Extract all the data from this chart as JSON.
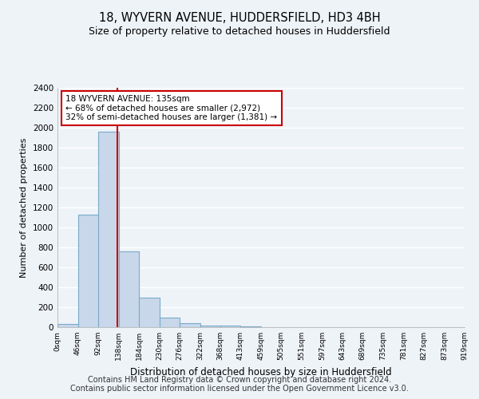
{
  "title": "18, WYVERN AVENUE, HUDDERSFIELD, HD3 4BH",
  "subtitle": "Size of property relative to detached houses in Huddersfield",
  "xlabel": "Distribution of detached houses by size in Huddersfield",
  "ylabel": "Number of detached properties",
  "bin_edges": [
    0,
    46,
    92,
    138,
    184,
    230,
    276,
    322,
    368,
    413,
    459,
    505,
    551,
    597,
    643,
    689,
    735,
    781,
    827,
    873,
    919
  ],
  "bin_counts": [
    35,
    1130,
    1960,
    760,
    295,
    100,
    42,
    20,
    15,
    5,
    0,
    0,
    0,
    0,
    0,
    0,
    0,
    0,
    0,
    0
  ],
  "bar_color": "#c8d8ea",
  "bar_edgecolor": "#7aaac8",
  "vline_x": 135,
  "vline_color": "#cc0000",
  "annotation_text_line1": "18 WYVERN AVENUE: 135sqm",
  "annotation_text_line2": "← 68% of detached houses are smaller (2,972)",
  "annotation_text_line3": "32% of semi-detached houses are larger (1,381) →",
  "annotation_box_color": "#ffffff",
  "annotation_border_color": "#cc0000",
  "ylim": [
    0,
    2400
  ],
  "yticks": [
    0,
    200,
    400,
    600,
    800,
    1000,
    1200,
    1400,
    1600,
    1800,
    2000,
    2200,
    2400
  ],
  "tick_labels": [
    "0sqm",
    "46sqm",
    "92sqm",
    "138sqm",
    "184sqm",
    "230sqm",
    "276sqm",
    "322sqm",
    "368sqm",
    "413sqm",
    "459sqm",
    "505sqm",
    "551sqm",
    "597sqm",
    "643sqm",
    "689sqm",
    "735sqm",
    "781sqm",
    "827sqm",
    "873sqm",
    "919sqm"
  ],
  "footer_line1": "Contains HM Land Registry data © Crown copyright and database right 2024.",
  "footer_line2": "Contains public sector information licensed under the Open Government Licence v3.0.",
  "background_color": "#eef3f8",
  "plot_background_color": "#eef3f8",
  "grid_color": "#ffffff",
  "title_fontsize": 10.5,
  "subtitle_fontsize": 9,
  "footer_fontsize": 7
}
